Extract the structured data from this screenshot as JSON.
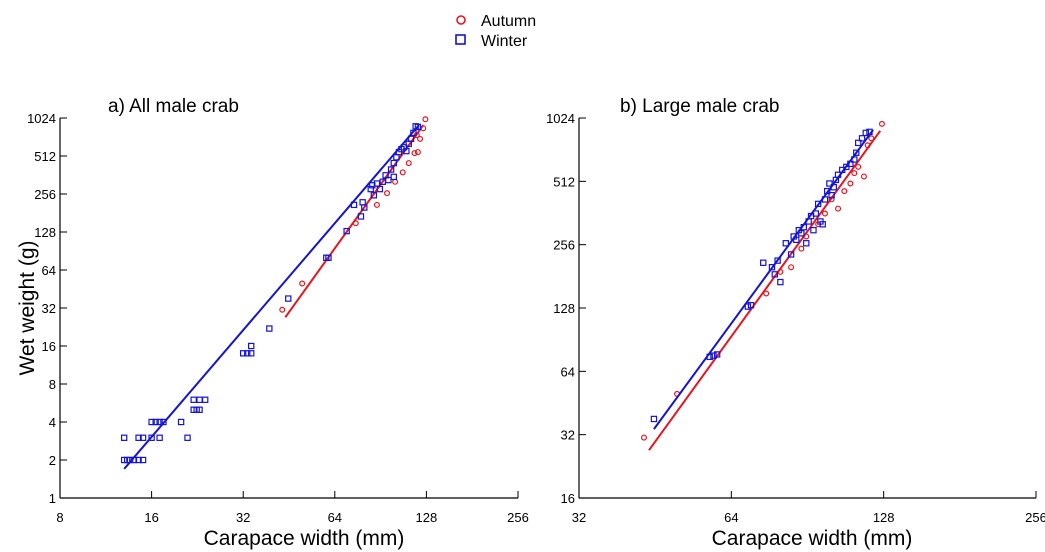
{
  "legend": {
    "entries": [
      {
        "label": "Autumn",
        "color": "#e8141e",
        "marker": "circle"
      },
      {
        "label": "Winter",
        "color": "#1414d2",
        "marker": "square"
      }
    ]
  },
  "chart_data": [
    {
      "type": "scatter",
      "title": "a) All male crab",
      "xlabel": "Carapace width (mm)",
      "ylabel": "Wet weight (g)",
      "x_scale": "log2",
      "y_scale": "log2",
      "xlim": [
        8,
        256
      ],
      "ylim": [
        1,
        1024
      ],
      "xticks": [
        8,
        16,
        32,
        64,
        128,
        256
      ],
      "yticks": [
        1,
        2,
        4,
        8,
        16,
        32,
        64,
        128,
        256,
        512,
        1024
      ],
      "series": [
        {
          "name": "Autumn",
          "color": "#e8141e",
          "marker": "circle",
          "points": [
            [
              43,
              31
            ],
            [
              50,
              50
            ],
            [
              75,
              150
            ],
            [
              88,
              210
            ],
            [
              95,
              260
            ],
            [
              101,
              320
            ],
            [
              107,
              380
            ],
            [
              112,
              450
            ],
            [
              117,
              540
            ],
            [
              119,
              750
            ],
            [
              120,
              550
            ],
            [
              122,
              700
            ],
            [
              125,
              850
            ],
            [
              127,
              1000
            ]
          ],
          "fit": [
            [
              44,
              27
            ],
            [
              125,
              900
            ]
          ]
        },
        {
          "name": "Winter",
          "color": "#1414d2",
          "marker": "square",
          "points": [
            [
              13,
              2
            ],
            [
              13.3,
              2
            ],
            [
              13.6,
              2
            ],
            [
              14,
              2
            ],
            [
              14.5,
              2
            ],
            [
              15,
              2
            ],
            [
              13,
              3
            ],
            [
              14.5,
              3
            ],
            [
              15,
              3
            ],
            [
              16,
              3
            ],
            [
              17,
              3
            ],
            [
              16,
              4
            ],
            [
              16.5,
              4
            ],
            [
              17,
              4
            ],
            [
              17.5,
              4
            ],
            [
              20,
              4
            ],
            [
              21,
              3
            ],
            [
              22,
              5
            ],
            [
              22.5,
              5
            ],
            [
              23,
              5
            ],
            [
              22,
              6
            ],
            [
              23,
              6
            ],
            [
              24,
              6
            ],
            [
              32,
              14
            ],
            [
              33,
              14
            ],
            [
              34,
              14
            ],
            [
              34,
              16
            ],
            [
              39,
              22
            ],
            [
              45,
              38
            ],
            [
              60,
              80
            ],
            [
              61,
              80
            ],
            [
              70,
              130
            ],
            [
              74,
              210
            ],
            [
              78,
              170
            ],
            [
              79,
              220
            ],
            [
              80,
              200
            ],
            [
              84,
              280
            ],
            [
              85,
              300
            ],
            [
              86,
              250
            ],
            [
              88,
              310
            ],
            [
              90,
              280
            ],
            [
              92,
              320
            ],
            [
              94,
              360
            ],
            [
              96,
              330
            ],
            [
              98,
              400
            ],
            [
              100,
              450
            ],
            [
              100,
              350
            ],
            [
              102,
              500
            ],
            [
              104,
              550
            ],
            [
              106,
              580
            ],
            [
              108,
              600
            ],
            [
              110,
              560
            ],
            [
              112,
              640
            ],
            [
              114,
              700
            ],
            [
              116,
              780
            ],
            [
              118,
              880
            ],
            [
              120,
              870
            ]
          ],
          "fit": [
            [
              13,
              1.7
            ],
            [
              121,
              900
            ]
          ]
        }
      ]
    },
    {
      "type": "scatter",
      "title": "b) Large male crab",
      "xlabel": "Carapace width (mm)",
      "ylabel": "",
      "x_scale": "log2",
      "y_scale": "log2",
      "xlim": [
        32,
        256
      ],
      "ylim": [
        16,
        1024
      ],
      "xticks": [
        32,
        64,
        128,
        256
      ],
      "yticks": [
        16,
        32,
        64,
        128,
        256,
        512,
        1024
      ],
      "series": [
        {
          "name": "Autumn",
          "color": "#e8141e",
          "marker": "circle",
          "points": [
            [
              43,
              31
            ],
            [
              50,
              50
            ],
            [
              75,
              150
            ],
            [
              80,
              190
            ],
            [
              84,
              200
            ],
            [
              88,
              245
            ],
            [
              90,
              280
            ],
            [
              95,
              320
            ],
            [
              98,
              360
            ],
            [
              101,
              420
            ],
            [
              104,
              380
            ],
            [
              107,
              460
            ],
            [
              110,
              500
            ],
            [
              112,
              560
            ],
            [
              114,
              600
            ],
            [
              117,
              540
            ],
            [
              119,
              760
            ],
            [
              121,
              820
            ],
            [
              127,
              960
            ]
          ],
          "fit": [
            [
              44,
              27
            ],
            [
              126,
              890
            ]
          ]
        },
        {
          "name": "Winter",
          "color": "#1414d2",
          "marker": "square",
          "points": [
            [
              45,
              38
            ],
            [
              58,
              75
            ],
            [
              59,
              76
            ],
            [
              60,
              77
            ],
            [
              69,
              130
            ],
            [
              70,
              132
            ],
            [
              74,
              210
            ],
            [
              77,
              200
            ],
            [
              78,
              185
            ],
            [
              80,
              170
            ],
            [
              79,
              215
            ],
            [
              82,
              260
            ],
            [
              84,
              230
            ],
            [
              85,
              280
            ],
            [
              86,
              270
            ],
            [
              87,
              300
            ],
            [
              88,
              290
            ],
            [
              89,
              310
            ],
            [
              90,
              260
            ],
            [
              91,
              330
            ],
            [
              92,
              350
            ],
            [
              93,
              300
            ],
            [
              94,
              360
            ],
            [
              95,
              400
            ],
            [
              96,
              330
            ],
            [
              97,
              320
            ],
            [
              98,
              420
            ],
            [
              99,
              460
            ],
            [
              100,
              500
            ],
            [
              101,
              440
            ],
            [
              102,
              480
            ],
            [
              103,
              520
            ],
            [
              104,
              550
            ],
            [
              106,
              580
            ],
            [
              108,
              600
            ],
            [
              110,
              620
            ],
            [
              112,
              650
            ],
            [
              113,
              700
            ],
            [
              114,
              780
            ],
            [
              116,
              820
            ],
            [
              118,
              870
            ],
            [
              120,
              880
            ]
          ],
          "fit": [
            [
              45,
              34
            ],
            [
              122,
              900
            ]
          ]
        }
      ]
    }
  ]
}
